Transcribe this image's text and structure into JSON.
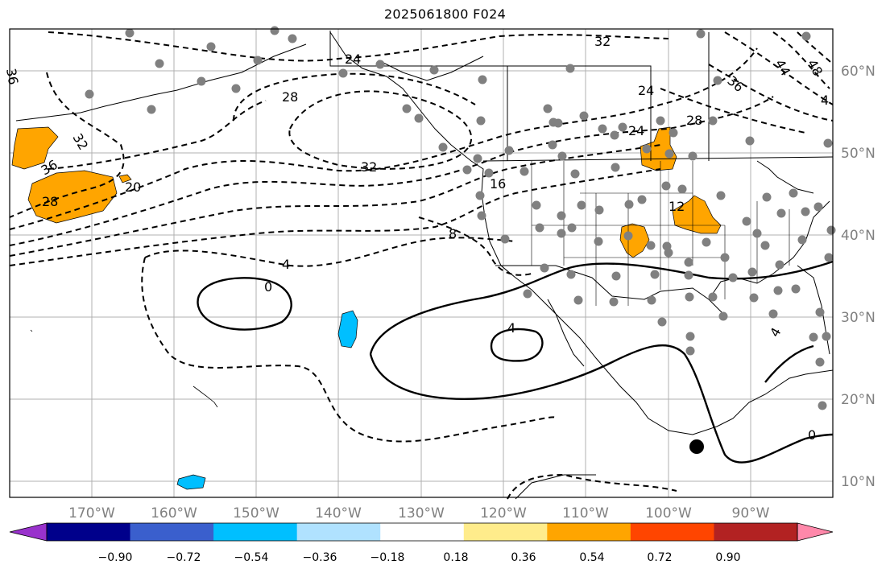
{
  "title": "2025061800 F024",
  "longitude_labels": [
    "170°W",
    "160°W",
    "150°W",
    "140°W",
    "130°W",
    "120°W",
    "110°W",
    "100°W",
    "90°W"
  ],
  "latitude_labels": [
    "60°N",
    "50°N",
    "40°N",
    "30°N",
    "20°N",
    "10°N"
  ],
  "contour_labels": [
    "24",
    "32",
    "44",
    "48",
    "4",
    "36",
    "28",
    "24",
    "28",
    "32",
    "36",
    "32",
    "28",
    "20",
    "16",
    "8",
    "12",
    "4",
    "0",
    "4",
    "4",
    "0",
    "24",
    "36"
  ],
  "colorbar": {
    "tick_labels": [
      "−0.90",
      "−0.72",
      "−0.54",
      "−0.36",
      "−0.18",
      "0.18",
      "0.36",
      "0.54",
      "0.72",
      "0.90"
    ],
    "colors": [
      "#9932cc",
      "#00008b",
      "#3a5fcd",
      "#00bfff",
      "#b0e2ff",
      "#ffffff",
      "#ffec8b",
      "#ffa500",
      "#ff4500",
      "#b22222",
      "#ff88aa"
    ]
  },
  "colors": {
    "positive_fill": "#ffa500",
    "negative_fill": "#00bfff",
    "station_dot": "#808080",
    "contour": "#000000",
    "grid": "#b0b0b0",
    "axis_label": "#808080"
  }
}
